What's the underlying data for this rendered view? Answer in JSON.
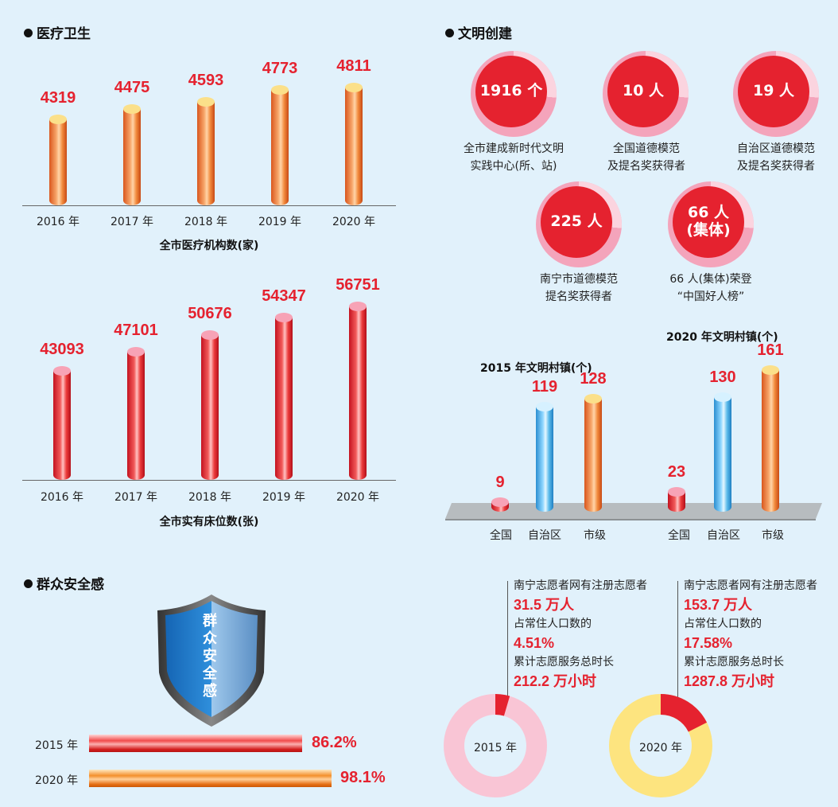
{
  "sections": {
    "medical": "医疗卫生",
    "civilization": "文明创建",
    "safety": "群众安全感"
  },
  "medical_institutions": {
    "caption": "全市医疗机构数(家)",
    "years": [
      "2016 年",
      "2017 年",
      "2018 年",
      "2019 年",
      "2020 年"
    ],
    "values": [
      "4319",
      "4475",
      "4593",
      "4773",
      "4811"
    ]
  },
  "hospital_beds": {
    "caption": "全市实有床位数(张)",
    "years": [
      "2016 年",
      "2017 年",
      "2018 年",
      "2019 年",
      "2020 年"
    ],
    "values": [
      "43093",
      "47101",
      "50676",
      "54347",
      "56751"
    ]
  },
  "civ_circles": [
    {
      "value": "1916 个",
      "label1": "全市建成新时代文明",
      "label2": "实践中心(所、站)"
    },
    {
      "value": "10 人",
      "label1": "全国道德模范",
      "label2": "及提名奖获得者"
    },
    {
      "value": "19 人",
      "label1": "自治区道德模范",
      "label2": "及提名奖获得者"
    },
    {
      "value": "225 人",
      "label1": "南宁市道德模范",
      "label2": "提名奖获得者"
    },
    {
      "value1": "66 人",
      "value2": "(集体)",
      "label1": "66 人(集体)荣登",
      "label2": "“中国好人榜”"
    }
  ],
  "villages": {
    "title_2015": "2015 年文明村镇(个)",
    "title_2020": "2020 年文明村镇(个)",
    "categories": [
      "全国",
      "自治区",
      "市级"
    ],
    "values_2015": [
      "9",
      "119",
      "128"
    ],
    "values_2020": [
      "23",
      "130",
      "161"
    ]
  },
  "safety": {
    "shield_text": [
      "群",
      "众",
      "安",
      "全",
      "感"
    ],
    "rows": [
      {
        "year": "2015 年",
        "value": "86.2%",
        "pct": 86.2
      },
      {
        "year": "2020 年",
        "value": "98.1%",
        "pct": 98.1
      }
    ]
  },
  "volunteers": [
    {
      "line1": "南宁志愿者网有注册志愿者",
      "num1": "31.5 万人",
      "line2": "占常住人口数的",
      "num2": "4.51%",
      "line3": "累计志愿服务总时长",
      "num3": "212.2 万小时",
      "year": "2015 年",
      "pct": 4.51
    },
    {
      "line1": "南宁志愿者网有注册志愿者",
      "num1": "153.7 万人",
      "line2": "占常住人口数的",
      "num2": "17.58%",
      "line3": "累计志愿服务总时长",
      "num3": "1287.8 万小时",
      "year": "2020 年",
      "pct": 17.58
    }
  ],
  "colors": {
    "accent_red": "#e5222f",
    "background": "#e1f1fb",
    "pink": "#f4a4bb",
    "yellow": "#fde47f"
  }
}
